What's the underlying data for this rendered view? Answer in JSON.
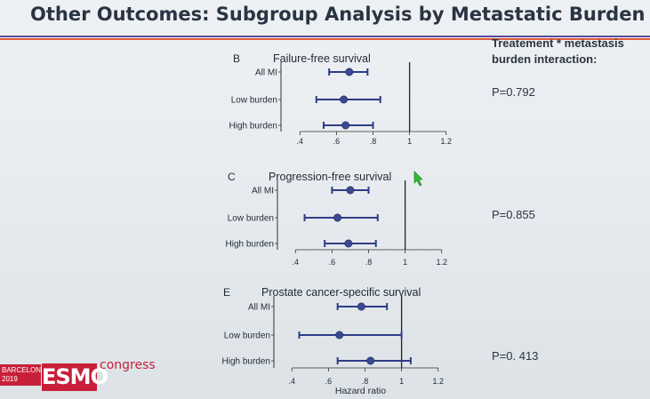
{
  "title": "Other Outcomes: Subgroup Analysis by Metastatic Burden",
  "side_header": [
    "Treatement * metastasis",
    "burden interaction:"
  ],
  "logo": {
    "city_lines": [
      "BARCELONA",
      "2019"
    ],
    "brand": "ESMO",
    "suffix": "congress",
    "color": "#c8203a"
  },
  "colors": {
    "point": "#3b4a8f",
    "ci_line": "#2e3d86",
    "axis": "#333333"
  },
  "chart_data": [
    {
      "type": "scatter",
      "panel": "B",
      "title": "Failure-free survival",
      "categories": [
        "All MI",
        "Low burden",
        "High burden"
      ],
      "point": [
        0.67,
        0.64,
        0.65
      ],
      "ci_low": [
        0.56,
        0.49,
        0.53
      ],
      "ci_high": [
        0.77,
        0.84,
        0.8
      ],
      "xlim": [
        0.35,
        1.25
      ],
      "x_ticks": [
        ".4",
        ".6",
        ".8",
        "1",
        "1.2"
      ],
      "x_tick_values": [
        0.4,
        0.6,
        0.8,
        1.0,
        1.2
      ],
      "reference_line": 1,
      "p_value": "P=0.792"
    },
    {
      "type": "scatter",
      "panel": "C",
      "title": "Progression-free survival",
      "categories": [
        "All MI",
        "Low burden",
        "High burden"
      ],
      "point": [
        0.7,
        0.63,
        0.69
      ],
      "ci_low": [
        0.6,
        0.45,
        0.56
      ],
      "ci_high": [
        0.8,
        0.85,
        0.84
      ],
      "xlim": [
        0.35,
        1.25
      ],
      "x_ticks": [
        ".4",
        ".6",
        ".8",
        "1",
        "1.2"
      ],
      "x_tick_values": [
        0.4,
        0.6,
        0.8,
        1.0,
        1.2
      ],
      "reference_line": 1,
      "p_value": "P=0.855"
    },
    {
      "type": "scatter",
      "panel": "E",
      "title": "Prostate cancer-specific survival",
      "categories": [
        "All MI",
        "Low burden",
        "High burden"
      ],
      "point": [
        0.78,
        0.66,
        0.83
      ],
      "ci_low": [
        0.65,
        0.44,
        0.65
      ],
      "ci_high": [
        0.92,
        1.0,
        1.05
      ],
      "xlim": [
        0.35,
        1.25
      ],
      "x_ticks": [
        ".4",
        ".6",
        ".8",
        "1",
        "1.2"
      ],
      "x_tick_values": [
        0.4,
        0.6,
        0.8,
        1.0,
        1.2
      ],
      "reference_line": 1,
      "xlabel": "Hazard ratio",
      "p_value": "P=0. 413"
    }
  ]
}
